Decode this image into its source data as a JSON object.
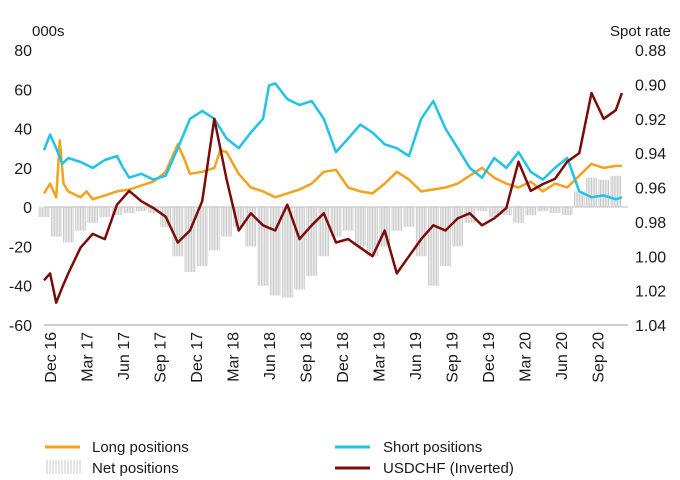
{
  "chart_data": {
    "type": "line",
    "left_axis_label": "000s",
    "right_axis_label": "Spot rate",
    "left_ticks": [
      "80",
      "60",
      "40",
      "20",
      "0",
      "-20",
      "-40",
      "-60"
    ],
    "right_ticks": [
      "0.88",
      "0.90",
      "0.92",
      "0.94",
      "0.96",
      "0.98",
      "1.00",
      "1.02",
      "1.04"
    ],
    "ylim_left": [
      -60,
      80
    ],
    "ylim_right_inverted": [
      0.88,
      1.04
    ],
    "x_labels": [
      "Dec 16",
      "Mar 17",
      "Jun 17",
      "Sep 17",
      "Dec 17",
      "Mar 18",
      "Jun 18",
      "Sep 18",
      "Dec 18",
      "Mar 19",
      "Jun 19",
      "Sep 19",
      "Dec 19",
      "Mar 20",
      "Jun 20",
      "Sep 20"
    ],
    "x_range_months": [
      0,
      48
    ],
    "colors": {
      "long": "#F4A11D",
      "short": "#1EC3E6",
      "net": "#C8C8C8",
      "usdchf": "#7A0C0C"
    },
    "legend": {
      "long": "Long positions",
      "short": "Short positions",
      "net": "Net positions",
      "usdchf": "USDCHF (Inverted)"
    },
    "series": [
      {
        "key": "long",
        "name": "Long positions",
        "axis": "left",
        "points": [
          [
            0,
            7
          ],
          [
            0.5,
            12
          ],
          [
            1,
            5
          ],
          [
            1.3,
            34
          ],
          [
            1.6,
            12
          ],
          [
            2,
            8
          ],
          [
            3,
            5
          ],
          [
            3.5,
            8
          ],
          [
            4,
            4
          ],
          [
            5,
            6
          ],
          [
            5.5,
            7
          ],
          [
            6,
            8
          ],
          [
            7,
            9
          ],
          [
            8,
            11
          ],
          [
            9,
            13
          ],
          [
            10,
            18
          ],
          [
            11,
            32
          ],
          [
            11.5,
            25
          ],
          [
            12,
            17
          ],
          [
            13,
            18
          ],
          [
            14,
            20
          ],
          [
            14.5,
            29
          ],
          [
            15,
            28
          ],
          [
            16,
            17
          ],
          [
            17,
            10
          ],
          [
            18,
            8
          ],
          [
            19,
            5
          ],
          [
            20,
            7
          ],
          [
            21,
            9
          ],
          [
            22,
            12
          ],
          [
            23,
            18
          ],
          [
            24,
            19
          ],
          [
            25,
            10
          ],
          [
            26,
            8
          ],
          [
            27,
            7
          ],
          [
            28,
            12
          ],
          [
            29,
            18
          ],
          [
            30,
            14
          ],
          [
            31,
            8
          ],
          [
            32,
            9
          ],
          [
            33,
            10
          ],
          [
            34,
            12
          ],
          [
            35,
            16
          ],
          [
            36,
            20
          ],
          [
            37,
            15
          ],
          [
            38,
            12
          ],
          [
            39,
            10
          ],
          [
            40,
            13
          ],
          [
            41,
            8
          ],
          [
            42,
            12
          ],
          [
            43,
            10
          ],
          [
            44,
            16
          ],
          [
            45,
            22
          ],
          [
            46,
            20
          ],
          [
            47,
            21
          ],
          [
            47.5,
            21
          ]
        ]
      },
      {
        "key": "short",
        "name": "Short positions",
        "axis": "left",
        "points": [
          [
            0,
            29
          ],
          [
            0.5,
            37
          ],
          [
            1,
            30
          ],
          [
            1.5,
            22
          ],
          [
            2,
            25
          ],
          [
            3,
            23
          ],
          [
            4,
            20
          ],
          [
            5,
            24
          ],
          [
            6,
            26
          ],
          [
            6.5,
            20
          ],
          [
            7,
            15
          ],
          [
            8,
            17
          ],
          [
            9,
            14
          ],
          [
            10,
            16
          ],
          [
            11,
            30
          ],
          [
            12,
            45
          ],
          [
            13,
            49
          ],
          [
            14,
            45
          ],
          [
            15,
            35
          ],
          [
            16,
            30
          ],
          [
            17,
            38
          ],
          [
            18,
            45
          ],
          [
            18.5,
            62
          ],
          [
            19,
            63
          ],
          [
            20,
            55
          ],
          [
            21,
            52
          ],
          [
            22,
            54
          ],
          [
            23,
            45
          ],
          [
            24,
            28
          ],
          [
            25,
            35
          ],
          [
            26,
            42
          ],
          [
            27,
            38
          ],
          [
            28,
            32
          ],
          [
            29,
            30
          ],
          [
            30,
            26
          ],
          [
            31,
            45
          ],
          [
            32,
            54
          ],
          [
            33,
            40
          ],
          [
            34,
            30
          ],
          [
            35,
            20
          ],
          [
            36,
            15
          ],
          [
            37,
            25
          ],
          [
            38,
            20
          ],
          [
            39,
            28
          ],
          [
            40,
            18
          ],
          [
            41,
            14
          ],
          [
            42,
            20
          ],
          [
            43,
            25
          ],
          [
            44,
            8
          ],
          [
            45,
            5
          ],
          [
            46,
            6
          ],
          [
            47,
            4
          ],
          [
            47.5,
            5
          ]
        ]
      },
      {
        "key": "usdchf",
        "name": "USDCHF (Inverted)",
        "axis": "right",
        "points": [
          [
            0,
            1.014
          ],
          [
            0.5,
            1.01
          ],
          [
            1,
            1.027
          ],
          [
            1.5,
            1.018
          ],
          [
            2,
            1.01
          ],
          [
            3,
            0.995
          ],
          [
            4,
            0.987
          ],
          [
            5,
            0.99
          ],
          [
            6,
            0.97
          ],
          [
            7,
            0.962
          ],
          [
            8,
            0.968
          ],
          [
            9,
            0.972
          ],
          [
            10,
            0.977
          ],
          [
            11,
            0.992
          ],
          [
            12,
            0.985
          ],
          [
            13,
            0.968
          ],
          [
            14,
            0.92
          ],
          [
            15,
            0.955
          ],
          [
            16,
            0.985
          ],
          [
            17,
            0.975
          ],
          [
            18,
            0.982
          ],
          [
            19,
            0.985
          ],
          [
            20,
            0.97
          ],
          [
            21,
            0.99
          ],
          [
            22,
            0.982
          ],
          [
            23,
            0.975
          ],
          [
            24,
            0.992
          ],
          [
            25,
            0.99
          ],
          [
            26,
            0.995
          ],
          [
            27,
            1.0
          ],
          [
            28,
            0.985
          ],
          [
            29,
            1.01
          ],
          [
            30,
            1.0
          ],
          [
            31,
            0.99
          ],
          [
            32,
            0.982
          ],
          [
            33,
            0.985
          ],
          [
            34,
            0.978
          ],
          [
            35,
            0.975
          ],
          [
            36,
            0.982
          ],
          [
            37,
            0.978
          ],
          [
            38,
            0.972
          ],
          [
            39,
            0.945
          ],
          [
            40,
            0.962
          ],
          [
            41,
            0.958
          ],
          [
            42,
            0.955
          ],
          [
            43,
            0.945
          ],
          [
            44,
            0.94
          ],
          [
            45,
            0.905
          ],
          [
            46,
            0.92
          ],
          [
            47,
            0.915
          ],
          [
            47.5,
            0.905
          ]
        ]
      }
    ],
    "net_bars": {
      "axis": "left",
      "points": [
        [
          0,
          -5
        ],
        [
          1,
          -15
        ],
        [
          2,
          -18
        ],
        [
          3,
          -12
        ],
        [
          4,
          -8
        ],
        [
          5,
          -5
        ],
        [
          6,
          -4
        ],
        [
          7,
          -3
        ],
        [
          8,
          -2
        ],
        [
          9,
          -3
        ],
        [
          10,
          -10
        ],
        [
          11,
          -25
        ],
        [
          12,
          -33
        ],
        [
          13,
          -30
        ],
        [
          14,
          -22
        ],
        [
          15,
          -15
        ],
        [
          16,
          -10
        ],
        [
          17,
          -20
        ],
        [
          18,
          -40
        ],
        [
          19,
          -45
        ],
        [
          20,
          -46
        ],
        [
          21,
          -42
        ],
        [
          22,
          -35
        ],
        [
          23,
          -25
        ],
        [
          24,
          -15
        ],
        [
          25,
          -12
        ],
        [
          26,
          -20
        ],
        [
          27,
          -25
        ],
        [
          28,
          -20
        ],
        [
          29,
          -12
        ],
        [
          30,
          -10
        ],
        [
          31,
          -25
        ],
        [
          32,
          -40
        ],
        [
          33,
          -30
        ],
        [
          34,
          -20
        ],
        [
          35,
          -8
        ],
        [
          36,
          -2
        ],
        [
          37,
          -5
        ],
        [
          38,
          -4
        ],
        [
          39,
          -8
        ],
        [
          40,
          -4
        ],
        [
          41,
          -2
        ],
        [
          42,
          -3
        ],
        [
          43,
          -4
        ],
        [
          44,
          8
        ],
        [
          45,
          15
        ],
        [
          46,
          14
        ],
        [
          47,
          16
        ]
      ]
    }
  }
}
